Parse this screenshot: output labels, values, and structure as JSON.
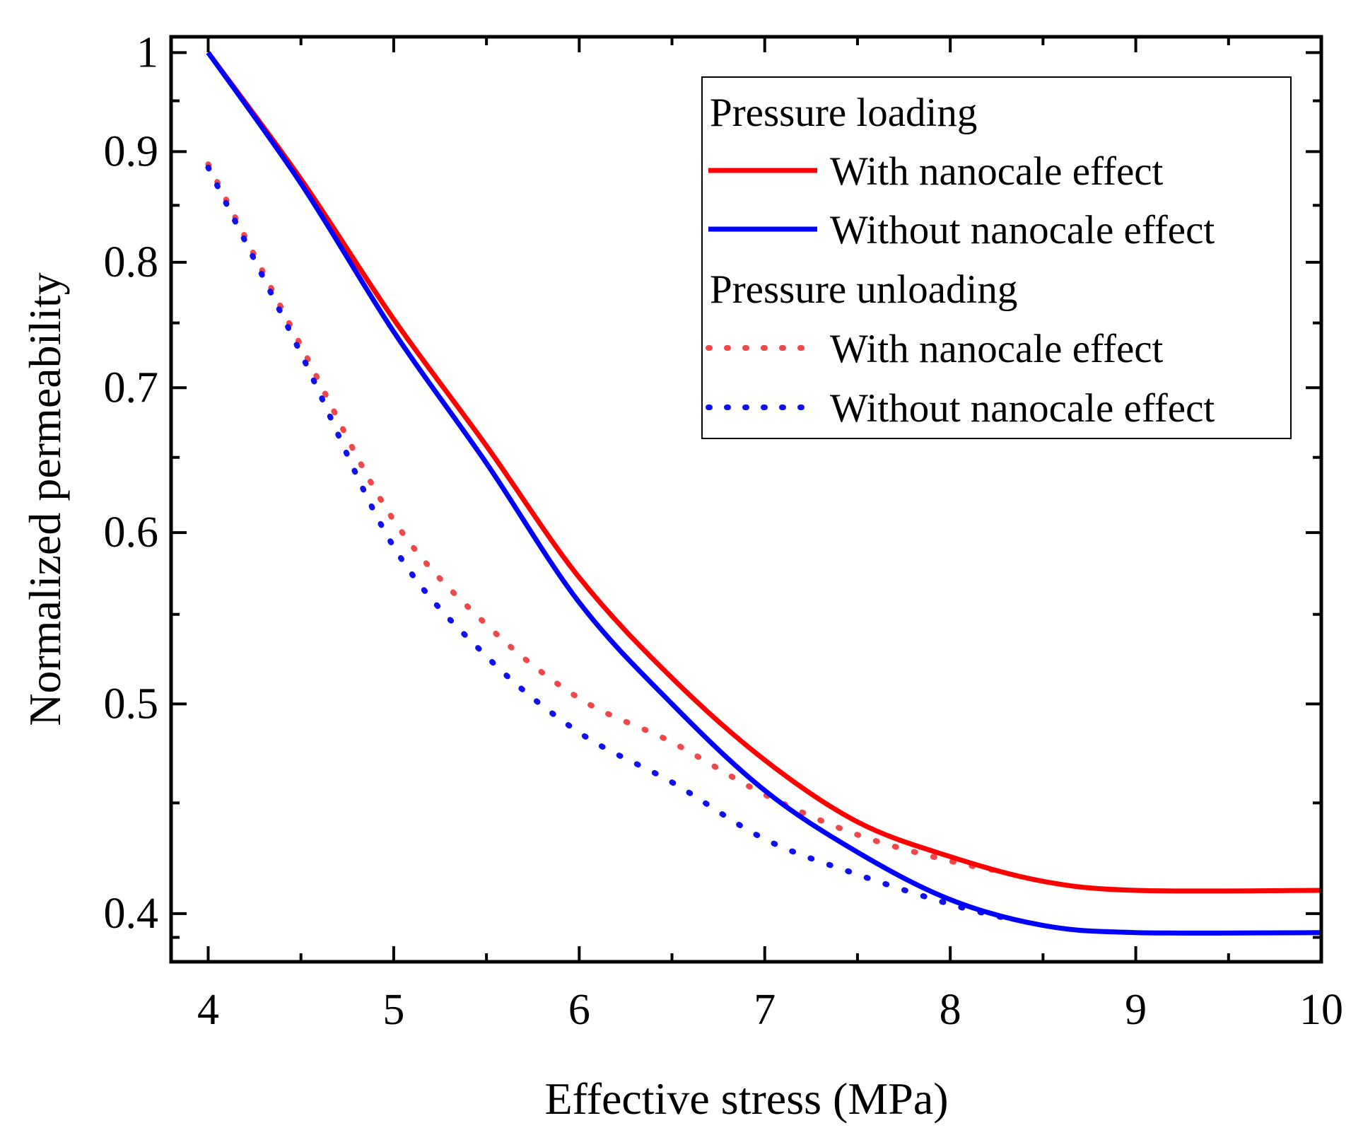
{
  "chart_data": {
    "type": "line",
    "title": "",
    "xlabel": "Effective stress (MPa)",
    "ylabel": "Normalized permeability",
    "xlim": [
      3.8,
      10
    ],
    "ylim": [
      0.38,
      1.017
    ],
    "yscale": "log",
    "grid": false,
    "legend_placement": "top-right",
    "xticks": [
      "4",
      "5",
      "6",
      "7",
      "8",
      "9",
      "10"
    ],
    "yticks": [
      "0.4",
      "0.5",
      "0.6",
      "0.7",
      "0.8",
      "0.9",
      "1"
    ],
    "legend_groups": [
      "Pressure loading",
      "Pressure unloading"
    ],
    "series": [
      {
        "name": "With nanocale effect",
        "group": "Pressure loading",
        "color": "#ff0000",
        "style": "solid",
        "x": [
          4,
          4.5,
          5,
          5.5,
          6,
          6.5,
          7,
          7.5,
          8,
          8.5,
          9,
          10
        ],
        "y": [
          1.0,
          0.874,
          0.753,
          0.658,
          0.572,
          0.514,
          0.471,
          0.441,
          0.425,
          0.414,
          0.41,
          0.41
        ]
      },
      {
        "name": "Without nanocale effect",
        "group": "Pressure loading",
        "color": "#0000ff",
        "style": "solid",
        "x": [
          4,
          4.5,
          5,
          5.5,
          6,
          6.5,
          7,
          7.5,
          8,
          8.5,
          9,
          10
        ],
        "y": [
          1.0,
          0.87,
          0.743,
          0.646,
          0.557,
          0.5,
          0.456,
          0.427,
          0.406,
          0.395,
          0.392,
          0.392
        ]
      },
      {
        "name": "With nanocale effect",
        "group": "Pressure unloading",
        "color": "#f04848",
        "style": "dotted",
        "x": [
          4,
          4.5,
          5,
          5.5,
          6,
          6.5,
          7,
          7.5,
          8,
          8.3
        ],
        "y": [
          0.888,
          0.732,
          0.608,
          0.544,
          0.503,
          0.48,
          0.454,
          0.435,
          0.423,
          0.418
        ]
      },
      {
        "name": "Without nanocale effect",
        "group": "Pressure unloading",
        "color": "#1010f0",
        "style": "dotted",
        "x": [
          4,
          4.5,
          5,
          5.5,
          6,
          6.5,
          7,
          7.5,
          8,
          8.3
        ],
        "y": [
          0.885,
          0.726,
          0.591,
          0.526,
          0.485,
          0.46,
          0.433,
          0.417,
          0.404,
          0.398
        ]
      }
    ]
  }
}
